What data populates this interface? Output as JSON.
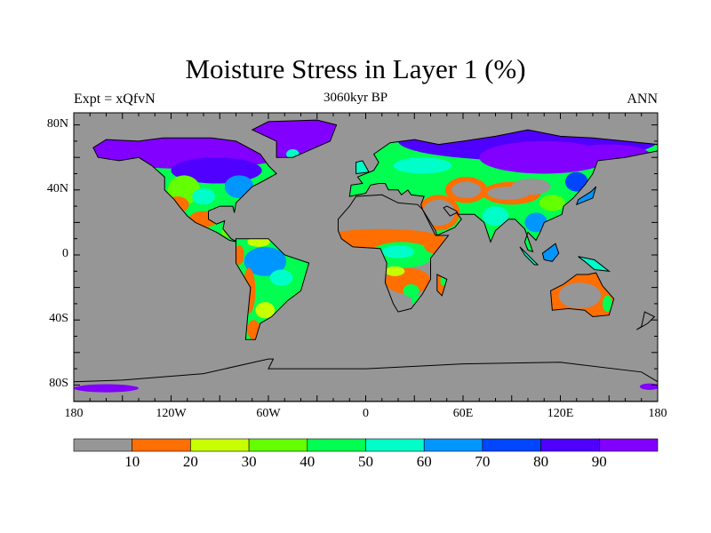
{
  "title": "Moisture Stress in Layer 1 (%)",
  "subtitle": "3060kyr BP",
  "left_string": "Expt = xQfvN",
  "right_string": "ANN",
  "map": {
    "lon_labels": [
      "180",
      "120W",
      "60W",
      "0",
      "60E",
      "120E",
      "180"
    ],
    "lon_values": [
      -180,
      -120,
      -60,
      0,
      60,
      120,
      180
    ],
    "lat_labels": [
      "80N",
      "40N",
      "0",
      "40S",
      "80S"
    ],
    "lat_values": [
      80,
      40,
      0,
      -40,
      -80
    ],
    "missing_color": "#969696"
  },
  "colorbar": {
    "levels": [
      "10",
      "20",
      "30",
      "40",
      "50",
      "60",
      "70",
      "80",
      "90"
    ],
    "colors": [
      "#969696",
      "#ff6e00",
      "#c8ff00",
      "#64ff00",
      "#00ff50",
      "#00ffc8",
      "#0096ff",
      "#0046ff",
      "#5000ff",
      "#8200ff"
    ]
  }
}
